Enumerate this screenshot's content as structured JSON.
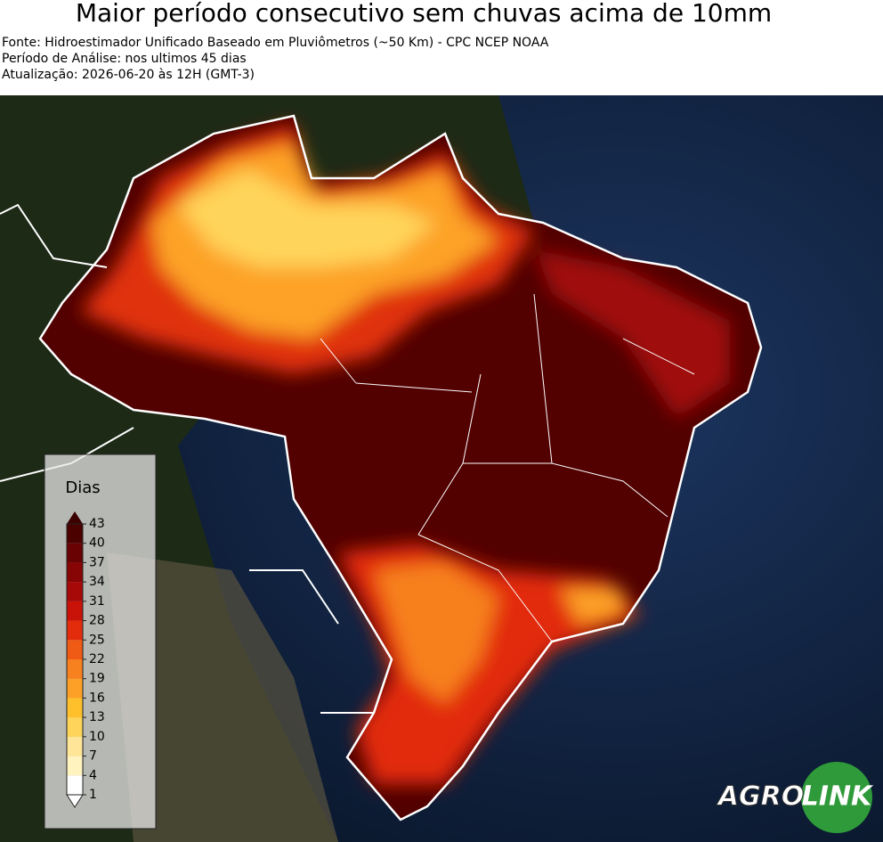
{
  "header": {
    "title": "Maior período consecutivo sem chuvas acima de 10mm",
    "lines": [
      "Fonte: Hidroestimador Unificado Baseado em Pluviômetros (~50 Km) - CPC NCEP NOAA",
      "Período de Análise: nos ultimos 45 dias",
      "Atualização: 2026-06-20 às 12H (GMT-3)"
    ]
  },
  "legend": {
    "title": "Dias",
    "ticks": [
      1,
      4,
      7,
      10,
      13,
      16,
      19,
      22,
      25,
      28,
      31,
      34,
      37,
      40,
      43
    ],
    "colors": [
      "#ffffff",
      "#fff3bf",
      "#ffe597",
      "#ffd45a",
      "#ffc02c",
      "#fca027",
      "#f7801f",
      "#ef5a14",
      "#e22c0c",
      "#c91308",
      "#a70808",
      "#870505",
      "#690303",
      "#4c0101",
      "#3c0000"
    ]
  },
  "logo": {
    "left": "AGRO",
    "right": "LINK"
  }
}
